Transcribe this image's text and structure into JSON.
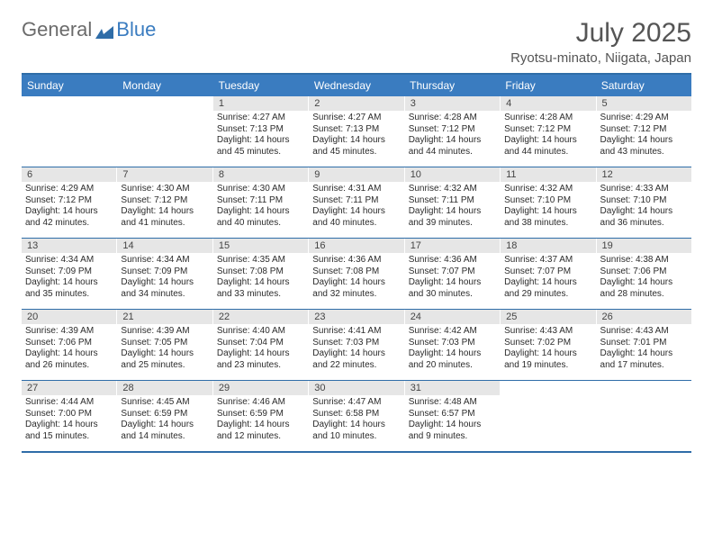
{
  "brand": {
    "general": "General",
    "blue": "Blue"
  },
  "title": {
    "month": "July 2025",
    "location": "Ryotsu-minato, Niigata, Japan"
  },
  "colors": {
    "header_bar": "#3a7cc0",
    "rule": "#2f6da8",
    "daynum_bg": "#e6e6e6",
    "text": "#2b2b2b",
    "title_text": "#555",
    "logo_gray": "#6b6b6b"
  },
  "weekdays": [
    "Sunday",
    "Monday",
    "Tuesday",
    "Wednesday",
    "Thursday",
    "Friday",
    "Saturday"
  ],
  "weeks": [
    [
      null,
      null,
      {
        "n": "1",
        "sr": "Sunrise: 4:27 AM",
        "ss": "Sunset: 7:13 PM",
        "dl": "Daylight: 14 hours and 45 minutes."
      },
      {
        "n": "2",
        "sr": "Sunrise: 4:27 AM",
        "ss": "Sunset: 7:13 PM",
        "dl": "Daylight: 14 hours and 45 minutes."
      },
      {
        "n": "3",
        "sr": "Sunrise: 4:28 AM",
        "ss": "Sunset: 7:12 PM",
        "dl": "Daylight: 14 hours and 44 minutes."
      },
      {
        "n": "4",
        "sr": "Sunrise: 4:28 AM",
        "ss": "Sunset: 7:12 PM",
        "dl": "Daylight: 14 hours and 44 minutes."
      },
      {
        "n": "5",
        "sr": "Sunrise: 4:29 AM",
        "ss": "Sunset: 7:12 PM",
        "dl": "Daylight: 14 hours and 43 minutes."
      }
    ],
    [
      {
        "n": "6",
        "sr": "Sunrise: 4:29 AM",
        "ss": "Sunset: 7:12 PM",
        "dl": "Daylight: 14 hours and 42 minutes."
      },
      {
        "n": "7",
        "sr": "Sunrise: 4:30 AM",
        "ss": "Sunset: 7:12 PM",
        "dl": "Daylight: 14 hours and 41 minutes."
      },
      {
        "n": "8",
        "sr": "Sunrise: 4:30 AM",
        "ss": "Sunset: 7:11 PM",
        "dl": "Daylight: 14 hours and 40 minutes."
      },
      {
        "n": "9",
        "sr": "Sunrise: 4:31 AM",
        "ss": "Sunset: 7:11 PM",
        "dl": "Daylight: 14 hours and 40 minutes."
      },
      {
        "n": "10",
        "sr": "Sunrise: 4:32 AM",
        "ss": "Sunset: 7:11 PM",
        "dl": "Daylight: 14 hours and 39 minutes."
      },
      {
        "n": "11",
        "sr": "Sunrise: 4:32 AM",
        "ss": "Sunset: 7:10 PM",
        "dl": "Daylight: 14 hours and 38 minutes."
      },
      {
        "n": "12",
        "sr": "Sunrise: 4:33 AM",
        "ss": "Sunset: 7:10 PM",
        "dl": "Daylight: 14 hours and 36 minutes."
      }
    ],
    [
      {
        "n": "13",
        "sr": "Sunrise: 4:34 AM",
        "ss": "Sunset: 7:09 PM",
        "dl": "Daylight: 14 hours and 35 minutes."
      },
      {
        "n": "14",
        "sr": "Sunrise: 4:34 AM",
        "ss": "Sunset: 7:09 PM",
        "dl": "Daylight: 14 hours and 34 minutes."
      },
      {
        "n": "15",
        "sr": "Sunrise: 4:35 AM",
        "ss": "Sunset: 7:08 PM",
        "dl": "Daylight: 14 hours and 33 minutes."
      },
      {
        "n": "16",
        "sr": "Sunrise: 4:36 AM",
        "ss": "Sunset: 7:08 PM",
        "dl": "Daylight: 14 hours and 32 minutes."
      },
      {
        "n": "17",
        "sr": "Sunrise: 4:36 AM",
        "ss": "Sunset: 7:07 PM",
        "dl": "Daylight: 14 hours and 30 minutes."
      },
      {
        "n": "18",
        "sr": "Sunrise: 4:37 AM",
        "ss": "Sunset: 7:07 PM",
        "dl": "Daylight: 14 hours and 29 minutes."
      },
      {
        "n": "19",
        "sr": "Sunrise: 4:38 AM",
        "ss": "Sunset: 7:06 PM",
        "dl": "Daylight: 14 hours and 28 minutes."
      }
    ],
    [
      {
        "n": "20",
        "sr": "Sunrise: 4:39 AM",
        "ss": "Sunset: 7:06 PM",
        "dl": "Daylight: 14 hours and 26 minutes."
      },
      {
        "n": "21",
        "sr": "Sunrise: 4:39 AM",
        "ss": "Sunset: 7:05 PM",
        "dl": "Daylight: 14 hours and 25 minutes."
      },
      {
        "n": "22",
        "sr": "Sunrise: 4:40 AM",
        "ss": "Sunset: 7:04 PM",
        "dl": "Daylight: 14 hours and 23 minutes."
      },
      {
        "n": "23",
        "sr": "Sunrise: 4:41 AM",
        "ss": "Sunset: 7:03 PM",
        "dl": "Daylight: 14 hours and 22 minutes."
      },
      {
        "n": "24",
        "sr": "Sunrise: 4:42 AM",
        "ss": "Sunset: 7:03 PM",
        "dl": "Daylight: 14 hours and 20 minutes."
      },
      {
        "n": "25",
        "sr": "Sunrise: 4:43 AM",
        "ss": "Sunset: 7:02 PM",
        "dl": "Daylight: 14 hours and 19 minutes."
      },
      {
        "n": "26",
        "sr": "Sunrise: 4:43 AM",
        "ss": "Sunset: 7:01 PM",
        "dl": "Daylight: 14 hours and 17 minutes."
      }
    ],
    [
      {
        "n": "27",
        "sr": "Sunrise: 4:44 AM",
        "ss": "Sunset: 7:00 PM",
        "dl": "Daylight: 14 hours and 15 minutes."
      },
      {
        "n": "28",
        "sr": "Sunrise: 4:45 AM",
        "ss": "Sunset: 6:59 PM",
        "dl": "Daylight: 14 hours and 14 minutes."
      },
      {
        "n": "29",
        "sr": "Sunrise: 4:46 AM",
        "ss": "Sunset: 6:59 PM",
        "dl": "Daylight: 14 hours and 12 minutes."
      },
      {
        "n": "30",
        "sr": "Sunrise: 4:47 AM",
        "ss": "Sunset: 6:58 PM",
        "dl": "Daylight: 14 hours and 10 minutes."
      },
      {
        "n": "31",
        "sr": "Sunrise: 4:48 AM",
        "ss": "Sunset: 6:57 PM",
        "dl": "Daylight: 14 hours and 9 minutes."
      },
      null,
      null
    ]
  ]
}
